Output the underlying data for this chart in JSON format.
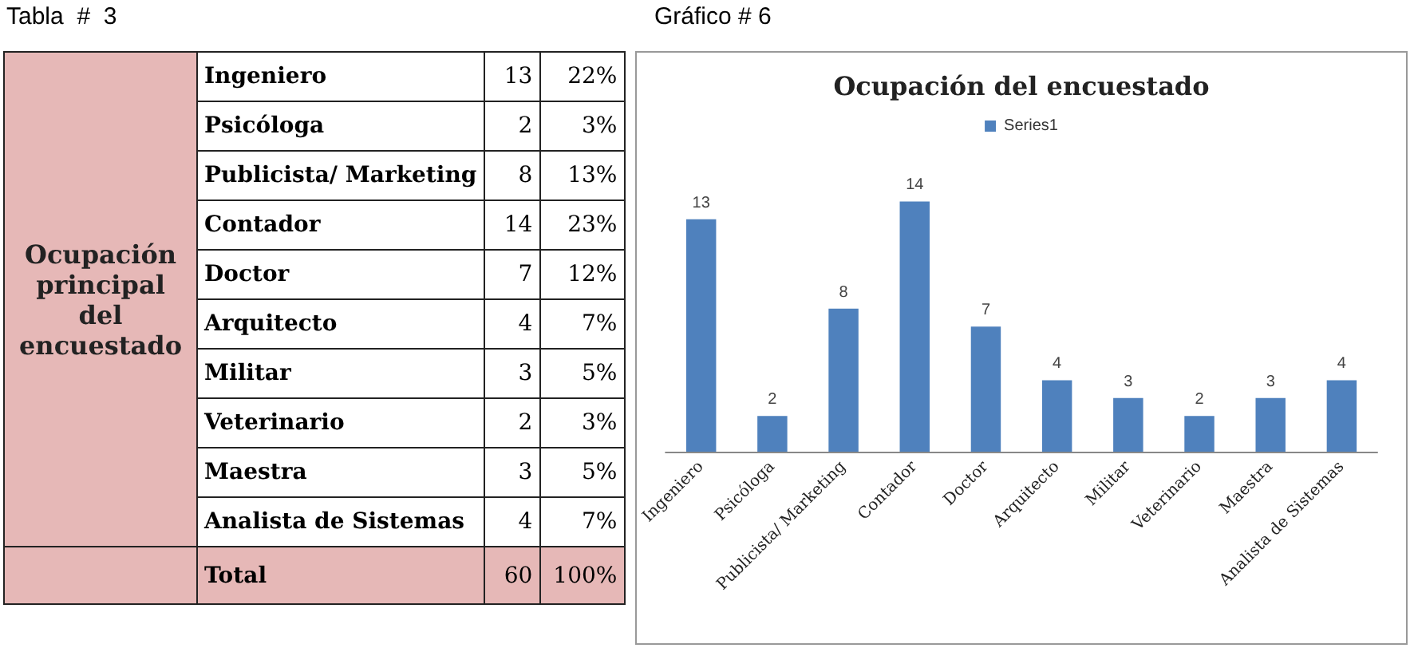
{
  "chart_data": [
    {
      "type": "other",
      "title": "Tabla  #  3",
      "ylabel": "Ocupación principal del encuestado",
      "categories": [
        "Ingeniero",
        "Psicóloga",
        "Publicista/ Marketing",
        "Contador",
        "Doctor",
        "Arquitecto",
        "Militar",
        "Veterinario",
        "Maestra",
        "Analista de Sistemas",
        "Total"
      ],
      "values": [
        13,
        2,
        8,
        14,
        7,
        4,
        3,
        2,
        3,
        4,
        60
      ],
      "data_labels": true,
      "annotations": [
        "22%",
        "3%",
        "13%",
        "23%",
        "12%",
        "7%",
        "5%",
        "3%",
        "5%",
        "7%",
        "100%"
      ]
    },
    {
      "type": "bar",
      "title": "Ocupación del encuestado",
      "annotations": [
        "Gráfico # 6"
      ],
      "categories": [
        "Ingeniero",
        "Psicóloga",
        "Publicista/ Marketing",
        "Contador",
        "Doctor",
        "Arquitecto",
        "Militar",
        "Veterinario",
        "Maestra",
        "Analista de Sistemas"
      ],
      "series": [
        {
          "name": "Series1",
          "color": "#4f81bd",
          "values": [
            13,
            2,
            8,
            14,
            7,
            4,
            3,
            2,
            3,
            4
          ]
        }
      ],
      "data_labels": true,
      "legend": "top"
    }
  ]
}
